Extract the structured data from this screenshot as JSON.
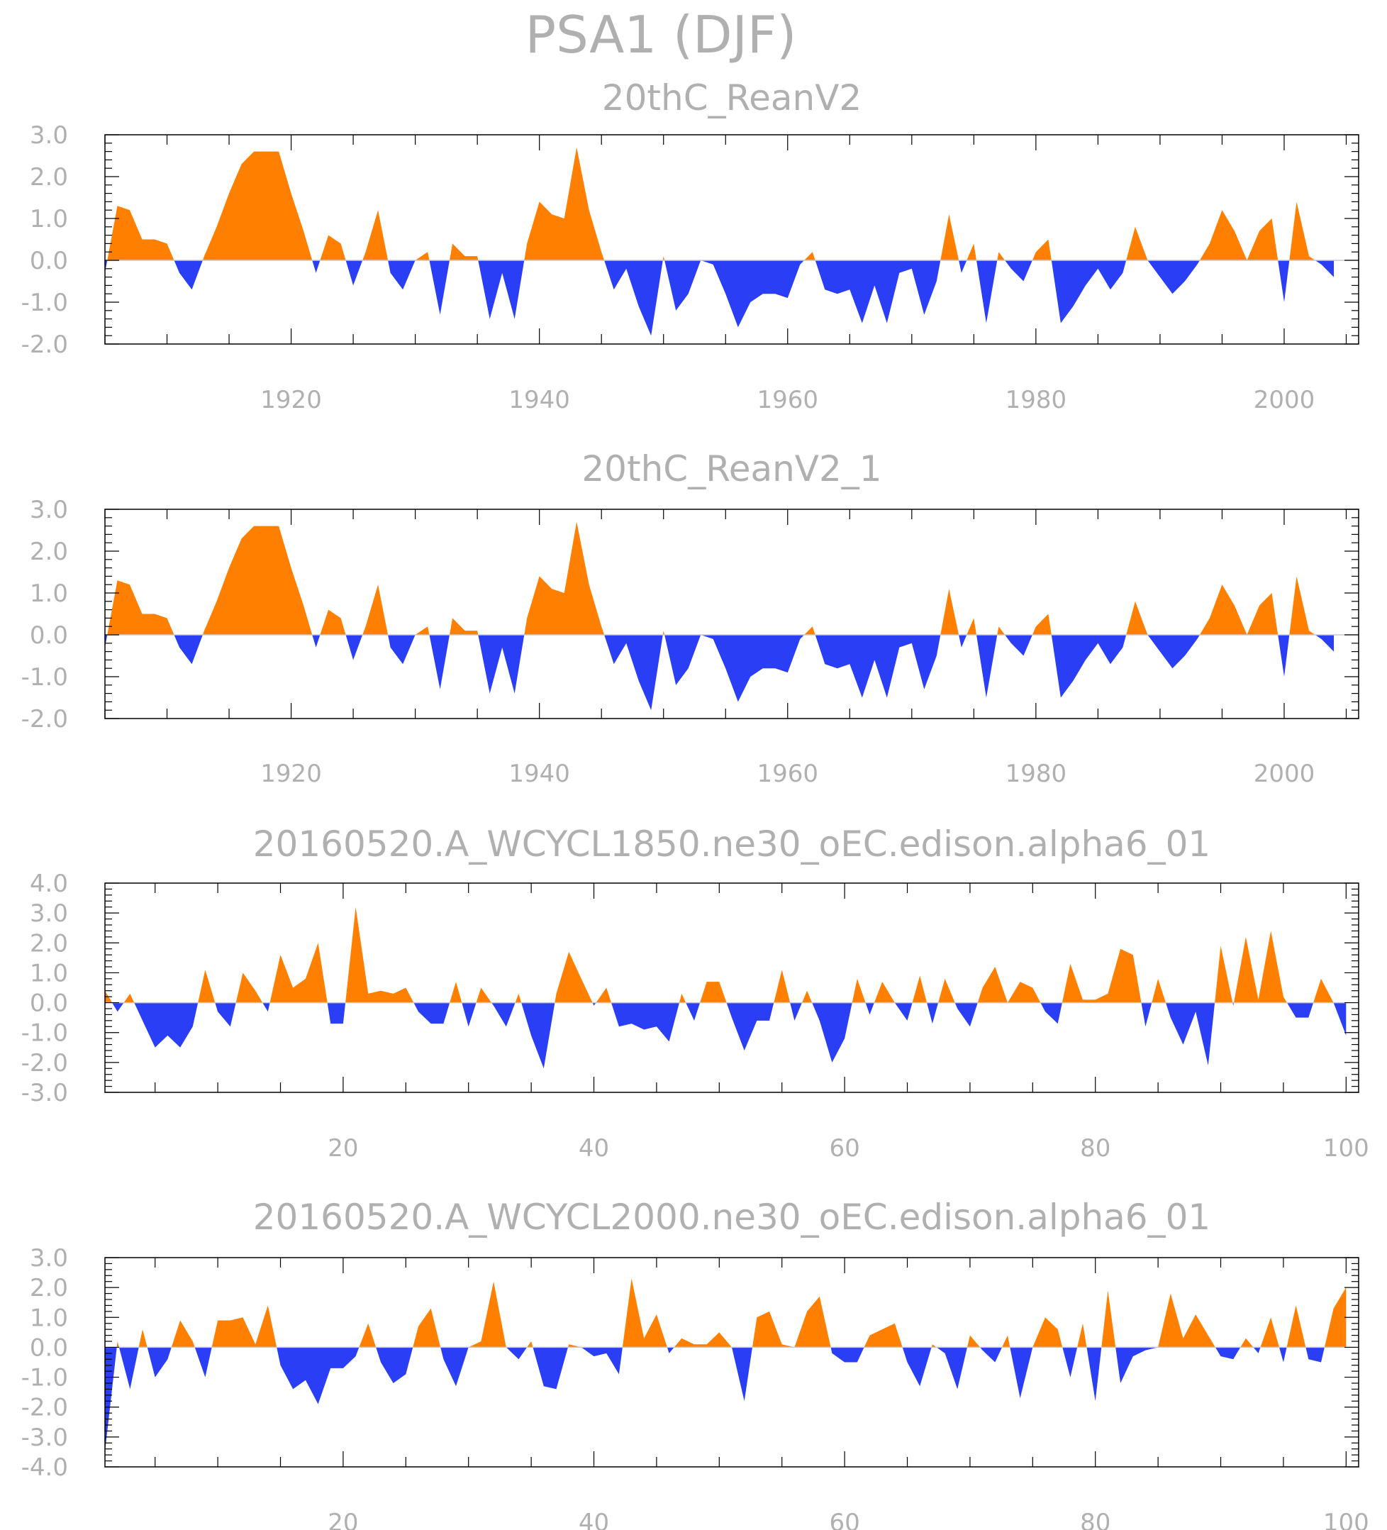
{
  "main_title": "PSA1 (DJF)",
  "colors": {
    "positive": "#ff8000",
    "negative": "#2a3ff5",
    "text": "#b0b0b0",
    "frame": "#000000"
  },
  "chart_data": [
    {
      "type": "area",
      "title": "20thC_ReanV2",
      "x_start": 1905,
      "x_step": 1,
      "xlim": [
        1905,
        2006
      ],
      "x_ticks": [
        1920,
        1940,
        1960,
        1980,
        2000
      ],
      "ylim": [
        -2.0,
        3.0
      ],
      "y_ticks": [
        "-2.0",
        "-1.0",
        "0.0",
        "1.0",
        "2.0",
        "3.0"
      ],
      "values": [
        -0.3,
        1.3,
        1.2,
        0.5,
        0.5,
        0.4,
        -0.3,
        -0.7,
        0.1,
        0.8,
        1.6,
        2.3,
        2.6,
        2.6,
        2.6,
        1.6,
        0.7,
        -0.3,
        0.6,
        0.4,
        -0.6,
        0.2,
        1.2,
        -0.3,
        -0.7,
        0.0,
        0.2,
        -1.3,
        0.4,
        0.1,
        0.1,
        -1.4,
        -0.3,
        -1.4,
        0.4,
        1.4,
        1.1,
        1.0,
        2.7,
        1.2,
        0.2,
        -0.7,
        -0.2,
        -1.1,
        -1.8,
        0.1,
        -1.2,
        -0.8,
        0.0,
        -0.1,
        -0.8,
        -1.6,
        -1.0,
        -0.8,
        -0.8,
        -0.9,
        -0.1,
        0.2,
        -0.7,
        -0.8,
        -0.7,
        -1.5,
        -0.6,
        -1.5,
        -0.3,
        -0.2,
        -1.3,
        -0.5,
        1.1,
        -0.3,
        0.4,
        -1.5,
        0.2,
        -0.2,
        -0.5,
        0.2,
        0.5,
        -1.5,
        -1.1,
        -0.6,
        -0.2,
        -0.7,
        -0.3,
        0.8,
        0.0,
        -0.4,
        -0.8,
        -0.5,
        -0.1,
        0.4,
        1.2,
        0.7,
        0.0,
        0.7,
        1.0,
        -1.0,
        1.4,
        0.1,
        -0.1,
        -0.4
      ]
    },
    {
      "type": "area",
      "title": "20thC_ReanV2_1",
      "x_start": 1905,
      "x_step": 1,
      "xlim": [
        1905,
        2006
      ],
      "x_ticks": [
        1920,
        1940,
        1960,
        1980,
        2000
      ],
      "ylim": [
        -2.0,
        3.0
      ],
      "y_ticks": [
        "-2.0",
        "-1.0",
        "0.0",
        "1.0",
        "2.0",
        "3.0"
      ],
      "values": [
        -0.3,
        1.3,
        1.2,
        0.5,
        0.5,
        0.4,
        -0.3,
        -0.7,
        0.1,
        0.8,
        1.6,
        2.3,
        2.6,
        2.6,
        2.6,
        1.6,
        0.7,
        -0.3,
        0.6,
        0.4,
        -0.6,
        0.2,
        1.2,
        -0.3,
        -0.7,
        0.0,
        0.2,
        -1.3,
        0.4,
        0.1,
        0.1,
        -1.4,
        -0.3,
        -1.4,
        0.4,
        1.4,
        1.1,
        1.0,
        2.7,
        1.2,
        0.2,
        -0.7,
        -0.2,
        -1.1,
        -1.8,
        0.1,
        -1.2,
        -0.8,
        0.0,
        -0.1,
        -0.8,
        -1.6,
        -1.0,
        -0.8,
        -0.8,
        -0.9,
        -0.1,
        0.2,
        -0.7,
        -0.8,
        -0.7,
        -1.5,
        -0.6,
        -1.5,
        -0.3,
        -0.2,
        -1.3,
        -0.5,
        1.1,
        -0.3,
        0.4,
        -1.5,
        0.2,
        -0.2,
        -0.5,
        0.2,
        0.5,
        -1.5,
        -1.1,
        -0.6,
        -0.2,
        -0.7,
        -0.3,
        0.8,
        0.0,
        -0.4,
        -0.8,
        -0.5,
        -0.1,
        0.4,
        1.2,
        0.7,
        0.0,
        0.7,
        1.0,
        -1.0,
        1.4,
        0.1,
        -0.1,
        -0.4
      ]
    },
    {
      "type": "area",
      "title": "20160520.A_WCYCL1850.ne30_oEC.edison.alpha6_01",
      "x_start": 1,
      "x_step": 1,
      "xlim": [
        1,
        101
      ],
      "x_ticks": [
        20,
        40,
        60,
        80,
        100
      ],
      "ylim": [
        -3.0,
        4.0
      ],
      "y_ticks": [
        "-3.0",
        "-2.0",
        "-1.0",
        "0.0",
        "1.0",
        "2.0",
        "3.0",
        "4.0"
      ],
      "values": [
        0.4,
        -0.3,
        0.3,
        -0.6,
        -1.5,
        -1.1,
        -1.5,
        -0.8,
        1.1,
        -0.3,
        -0.8,
        1.0,
        0.4,
        -0.3,
        1.6,
        0.5,
        0.8,
        2.0,
        -0.7,
        -0.7,
        3.2,
        0.3,
        0.4,
        0.3,
        0.5,
        -0.3,
        -0.7,
        -0.7,
        0.7,
        -0.8,
        0.5,
        -0.1,
        -0.8,
        0.3,
        -1.1,
        -2.2,
        0.3,
        1.7,
        0.8,
        -0.1,
        0.5,
        -0.8,
        -0.7,
        -0.9,
        -0.8,
        -1.3,
        0.3,
        -0.6,
        0.7,
        0.7,
        -0.5,
        -1.6,
        -0.6,
        -0.6,
        1.1,
        -0.6,
        0.4,
        -0.6,
        -2.0,
        -1.2,
        0.8,
        -0.4,
        0.7,
        0.0,
        -0.6,
        0.9,
        -0.7,
        0.8,
        -0.2,
        -0.8,
        0.5,
        1.2,
        0.0,
        0.7,
        0.5,
        -0.3,
        -0.7,
        1.3,
        0.1,
        0.1,
        0.3,
        1.8,
        1.6,
        -0.8,
        0.8,
        -0.5,
        -1.4,
        -0.3,
        -2.1,
        1.9,
        -0.1,
        2.2,
        0.1,
        2.4,
        0.2,
        -0.5,
        -0.5,
        0.8,
        0.0,
        -1.1
      ]
    },
    {
      "type": "area",
      "title": "20160520.A_WCYCL2000.ne30_oEC.edison.alpha6_01",
      "x_start": 1,
      "x_step": 1,
      "xlim": [
        1,
        101
      ],
      "x_ticks": [
        20,
        40,
        60,
        80,
        100
      ],
      "ylim": [
        -4.0,
        3.0
      ],
      "y_ticks": [
        "-4.0",
        "-3.0",
        "-2.0",
        "-1.0",
        "0.0",
        "1.0",
        "2.0",
        "3.0"
      ],
      "values": [
        -3.5,
        0.2,
        -1.4,
        0.6,
        -1.0,
        -0.4,
        0.9,
        0.2,
        -1.0,
        0.9,
        0.9,
        1.0,
        0.1,
        1.4,
        -0.6,
        -1.4,
        -1.1,
        -1.9,
        -0.7,
        -0.7,
        -0.3,
        0.8,
        -0.5,
        -1.2,
        -0.9,
        0.7,
        1.3,
        -0.4,
        -1.3,
        0.0,
        0.2,
        2.2,
        0.0,
        -0.4,
        0.2,
        -1.3,
        -1.4,
        0.1,
        0.0,
        -0.3,
        -0.2,
        -0.9,
        2.3,
        0.3,
        1.1,
        -0.2,
        0.3,
        0.1,
        0.1,
        0.5,
        0.0,
        -1.8,
        1.0,
        1.2,
        0.1,
        0.0,
        1.2,
        1.7,
        -0.2,
        -0.5,
        -0.5,
        0.4,
        0.6,
        0.8,
        -0.5,
        -1.3,
        0.1,
        -0.2,
        -1.4,
        0.4,
        -0.1,
        -0.5,
        0.4,
        -1.7,
        0.0,
        1.0,
        0.6,
        -1.0,
        0.8,
        -1.8,
        1.9,
        -1.2,
        -0.3,
        -0.1,
        0.0,
        1.8,
        0.3,
        1.1,
        0.4,
        -0.3,
        -0.4,
        0.3,
        -0.2,
        1.0,
        -0.5,
        1.4,
        -0.4,
        -0.5,
        1.3,
        2.0
      ]
    }
  ]
}
